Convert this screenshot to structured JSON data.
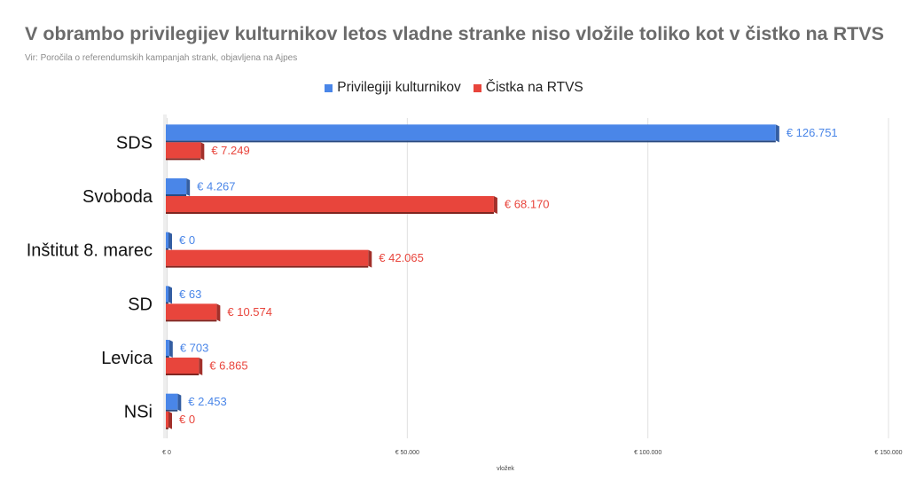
{
  "title": "V obrambo privilegijev kulturnikov letos vladne stranke niso vložile toliko kot v čistko na RTVS",
  "subtitle": "Vir: Poročila o referendumskih kampanjah strank, objavljena na Ajpes",
  "colors": {
    "blue": "#4a86e8",
    "red": "#e8453c"
  },
  "chart_data": {
    "type": "bar",
    "orientation": "horizontal",
    "style": "3d",
    "categories": [
      "SDS",
      "Svoboda",
      "Inštitut 8. marec",
      "SD",
      "Levica",
      "NSi"
    ],
    "series": [
      {
        "name": "Privilegiji kulturnikov",
        "color": "#4a86e8",
        "values": [
          126751,
          4267,
          0,
          63,
          703,
          2453
        ],
        "labels": [
          "€ 126.751",
          "€ 4.267",
          "€ 0",
          "€ 63",
          "€ 703",
          "€ 2.453"
        ]
      },
      {
        "name": "Čistka na RTVS",
        "color": "#e8453c",
        "values": [
          7249,
          68170,
          42065,
          10574,
          6865,
          0
        ],
        "labels": [
          "€ 7.249",
          "€ 68.170",
          "€ 42.065",
          "€ 10.574",
          "€ 6.865",
          "€ 0"
        ]
      }
    ],
    "xlim": [
      0,
      150000
    ],
    "x_ticks": [
      0,
      50000,
      100000,
      150000
    ],
    "x_tick_labels": [
      "€ 0",
      "€ 50.000",
      "€ 100.000",
      "€ 150.000"
    ],
    "xlabel": "vložek",
    "ylabel": "",
    "legend_position": "top",
    "grid": "vertical"
  }
}
